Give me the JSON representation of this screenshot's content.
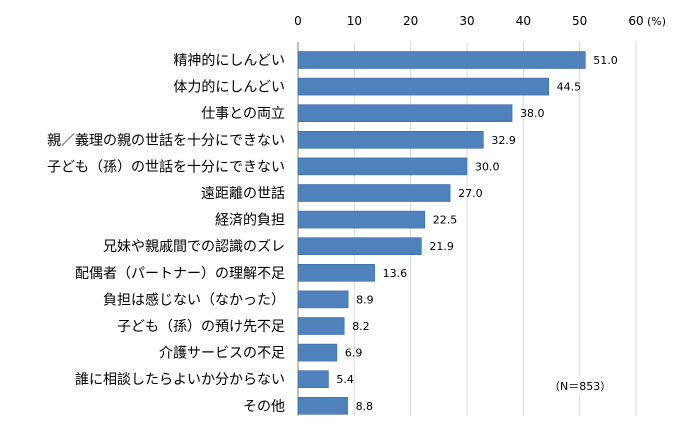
{
  "chart_data": {
    "type": "bar",
    "orientation": "horizontal",
    "categories": [
      "精神的にしんどい",
      "体力的にしんどい",
      "仕事との両立",
      "親／義理の親の世話を十分にできない",
      "子ども（孫）の世話を十分にできない",
      "遠距離の世話",
      "経済的負担",
      "兄妹や親戚間での認識のズレ",
      "配偶者（パートナー）の理解不足",
      "負担は感じない（なかった）",
      "子ども（孫）の預け先不足",
      "介護サービスの不足",
      "誰に相談したらよいか分からない",
      "その他"
    ],
    "values": [
      51.0,
      44.5,
      38.0,
      32.9,
      30.0,
      27.0,
      22.5,
      21.9,
      13.6,
      8.9,
      8.2,
      6.9,
      5.4,
      8.8
    ],
    "value_labels": [
      "51.0",
      "44.5",
      "38.0",
      "32.9",
      "30.0",
      "27.0",
      "22.5",
      "21.9",
      "13.6",
      "8.9",
      "8.2",
      "6.9",
      "5.4",
      "8.8"
    ],
    "xlim": [
      0,
      60
    ],
    "xticks": [
      "0",
      "10",
      "20",
      "30",
      "40",
      "50",
      "60"
    ],
    "x_axis_position": "top",
    "unit_label": "(%)",
    "note": "（N＝853）",
    "grid": true,
    "bar_color": "#4f81bd",
    "bar_edge_color": "#3a6aa5",
    "grid_color": "#d9d9d9",
    "legend": "none"
  }
}
